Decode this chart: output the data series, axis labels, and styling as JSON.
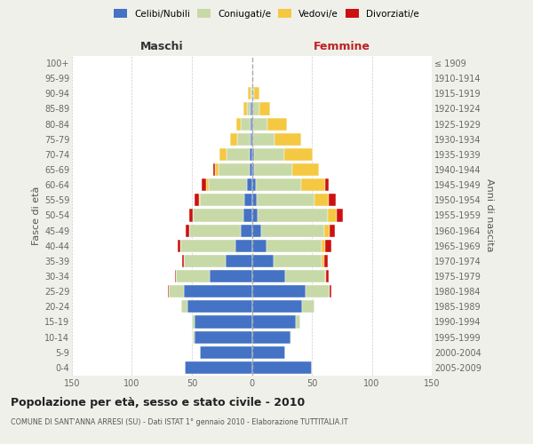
{
  "age_groups": [
    "0-4",
    "5-9",
    "10-14",
    "15-19",
    "20-24",
    "25-29",
    "30-34",
    "35-39",
    "40-44",
    "45-49",
    "50-54",
    "55-59",
    "60-64",
    "65-69",
    "70-74",
    "75-79",
    "80-84",
    "85-89",
    "90-94",
    "95-99",
    "100+"
  ],
  "birth_years": [
    "2005-2009",
    "2000-2004",
    "1995-1999",
    "1990-1994",
    "1985-1989",
    "1980-1984",
    "1975-1979",
    "1970-1974",
    "1965-1969",
    "1960-1964",
    "1955-1959",
    "1950-1954",
    "1945-1949",
    "1940-1944",
    "1935-1939",
    "1930-1934",
    "1925-1929",
    "1920-1924",
    "1915-1919",
    "1910-1914",
    "≤ 1909"
  ],
  "maschi_celibi": [
    56,
    43,
    48,
    48,
    54,
    57,
    35,
    22,
    14,
    9,
    7,
    6,
    4,
    2,
    2,
    1,
    1,
    1,
    0,
    0,
    0
  ],
  "maschi_coniugati": [
    0,
    0,
    1,
    2,
    5,
    12,
    28,
    35,
    46,
    43,
    42,
    37,
    32,
    26,
    19,
    11,
    8,
    3,
    1,
    0,
    0
  ],
  "maschi_vedovi": [
    0,
    0,
    0,
    0,
    0,
    0,
    0,
    0,
    0,
    0,
    0,
    1,
    2,
    3,
    6,
    6,
    4,
    3,
    2,
    0,
    0
  ],
  "maschi_divorziati": [
    0,
    0,
    0,
    0,
    0,
    1,
    1,
    1,
    2,
    3,
    3,
    4,
    4,
    1,
    0,
    0,
    0,
    0,
    0,
    0,
    0
  ],
  "femmine_nubili": [
    50,
    28,
    32,
    37,
    42,
    45,
    28,
    18,
    12,
    8,
    5,
    4,
    3,
    2,
    2,
    1,
    1,
    1,
    0,
    0,
    0
  ],
  "femmine_coniugate": [
    0,
    0,
    1,
    3,
    10,
    20,
    33,
    40,
    46,
    52,
    58,
    48,
    38,
    32,
    25,
    18,
    12,
    5,
    2,
    0,
    0
  ],
  "femmine_vedove": [
    0,
    0,
    0,
    0,
    0,
    0,
    1,
    2,
    3,
    5,
    8,
    12,
    20,
    22,
    24,
    22,
    16,
    9,
    4,
    1,
    0
  ],
  "femmine_divorziate": [
    0,
    0,
    0,
    0,
    0,
    1,
    2,
    3,
    5,
    4,
    5,
    6,
    3,
    0,
    0,
    0,
    0,
    0,
    0,
    0,
    0
  ],
  "color_celibi": "#4472C4",
  "color_coniugati": "#C8D9A8",
  "color_vedovi": "#F5C842",
  "color_divorziati": "#CC1111",
  "xlim": 150,
  "title": "Popolazione per età, sesso e stato civile - 2010",
  "subtitle": "COMUNE DI SANT'ANNA ARRESI (SU) - Dati ISTAT 1° gennaio 2010 - Elaborazione TUTTITALIA.IT",
  "bg_color": "#f0f0eb",
  "plot_bg": "#ffffff"
}
